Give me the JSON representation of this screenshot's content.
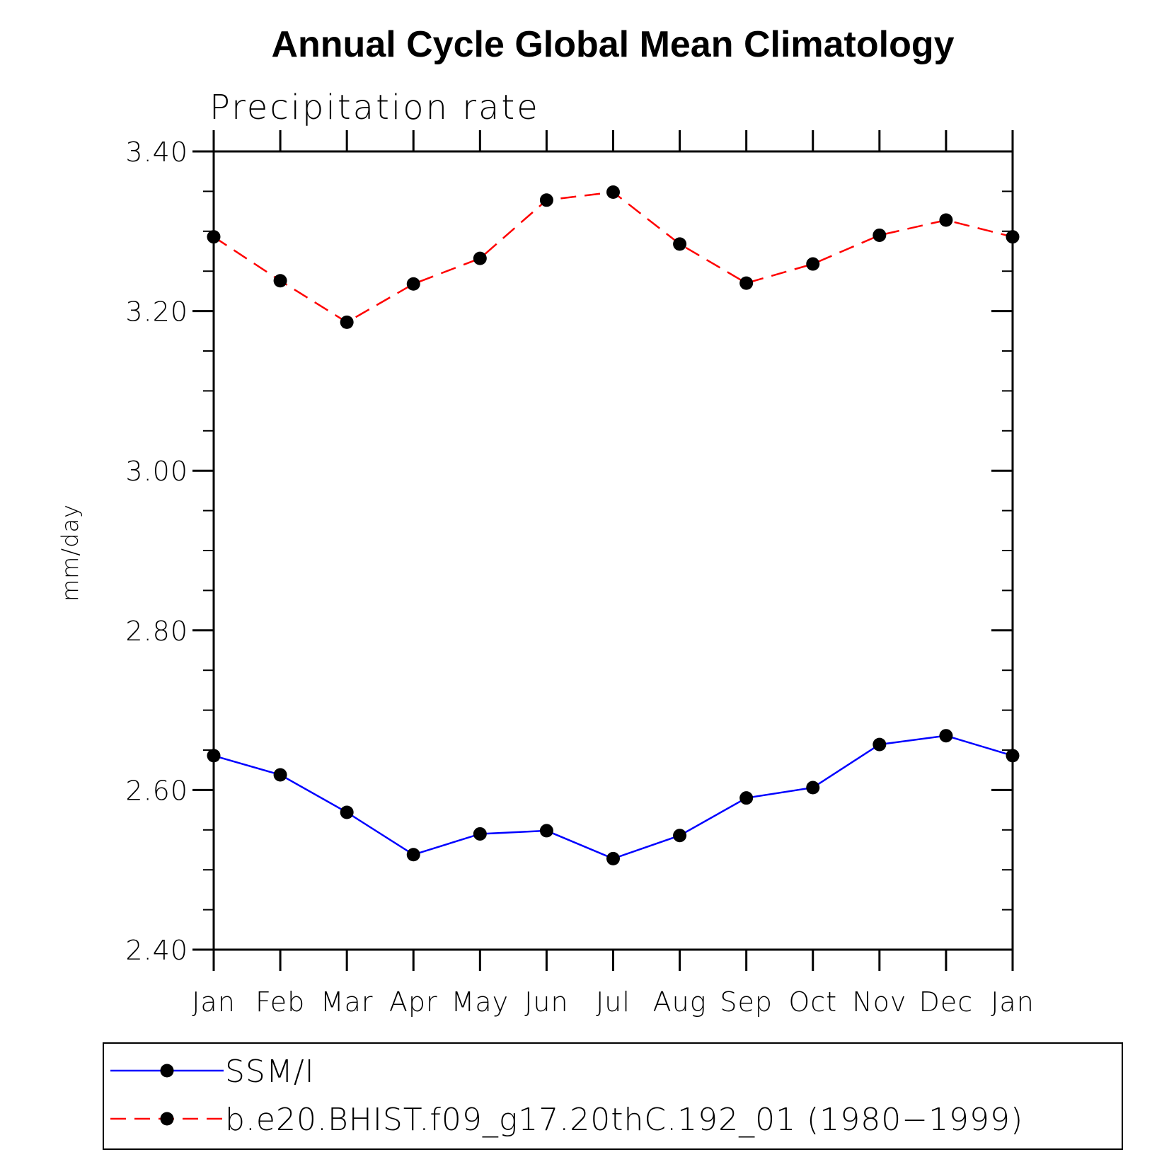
{
  "chart_data": {
    "type": "line",
    "title": "Annual Cycle Global Mean Climatology",
    "subtitle": "Precipitation rate",
    "xlabel": "",
    "ylabel": "mm/day",
    "categories": [
      "Jan",
      "Feb",
      "Mar",
      "Apr",
      "May",
      "Jun",
      "Jul",
      "Aug",
      "Sep",
      "Oct",
      "Nov",
      "Dec",
      "Jan"
    ],
    "ylim": [
      2.4,
      3.4
    ],
    "yticks": [
      2.4,
      2.6,
      2.8,
      3.0,
      3.2,
      3.4
    ],
    "ytick_labels": [
      "2.40",
      "2.60",
      "2.80",
      "3.00",
      "3.20",
      "3.40"
    ],
    "yminor_step": 0.05,
    "grid": false,
    "legend_position": "bottom",
    "series": [
      {
        "name": "SSM/I",
        "color": "#0000ff",
        "line_style": "solid",
        "marker": "filled-circle",
        "values": [
          2.643,
          2.619,
          2.572,
          2.519,
          2.545,
          2.549,
          2.514,
          2.543,
          2.59,
          2.603,
          2.657,
          2.668,
          2.643
        ]
      },
      {
        "name": "b.e20.BHIST.f09_g17.20thC.192_01 (1980−1999)",
        "color": "#ff0000",
        "line_style": "dashed",
        "marker": "filled-circle",
        "values": [
          3.293,
          3.238,
          3.186,
          3.234,
          3.266,
          3.339,
          3.349,
          3.284,
          3.235,
          3.259,
          3.295,
          3.314,
          3.293
        ]
      }
    ]
  }
}
